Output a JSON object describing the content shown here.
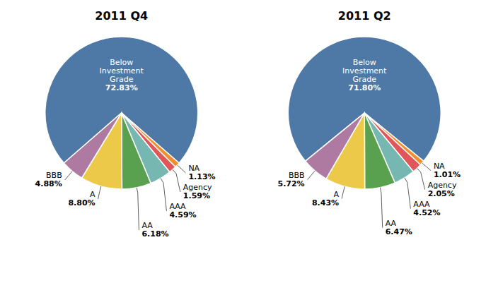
{
  "chart_data": [
    {
      "type": "pie",
      "title": "2011 Q4",
      "categories": [
        "Below\nInvestment\nGrade",
        "NA",
        "Agency",
        "AAA",
        "AA",
        "A",
        "BBB"
      ],
      "values": [
        72.83,
        1.13,
        1.59,
        4.59,
        6.18,
        8.8,
        4.88
      ],
      "value_labels": [
        "72.83%",
        "1.13%",
        "1.59%",
        "4.59%",
        "6.18%",
        "8.80%",
        "4.88%"
      ],
      "data_labels": true
    },
    {
      "type": "pie",
      "title": "2011 Q2",
      "categories": [
        "Below\nInvestment\nGrade",
        "NA",
        "Agency",
        "AAA",
        "AA",
        "A",
        "BBB"
      ],
      "values": [
        71.8,
        1.01,
        2.05,
        4.52,
        6.47,
        8.43,
        5.72
      ],
      "value_labels": [
        "71.80%",
        "1.01%",
        "2.05%",
        "4.52%",
        "6.47%",
        "8.43%",
        "5.72%"
      ],
      "data_labels": true
    }
  ]
}
